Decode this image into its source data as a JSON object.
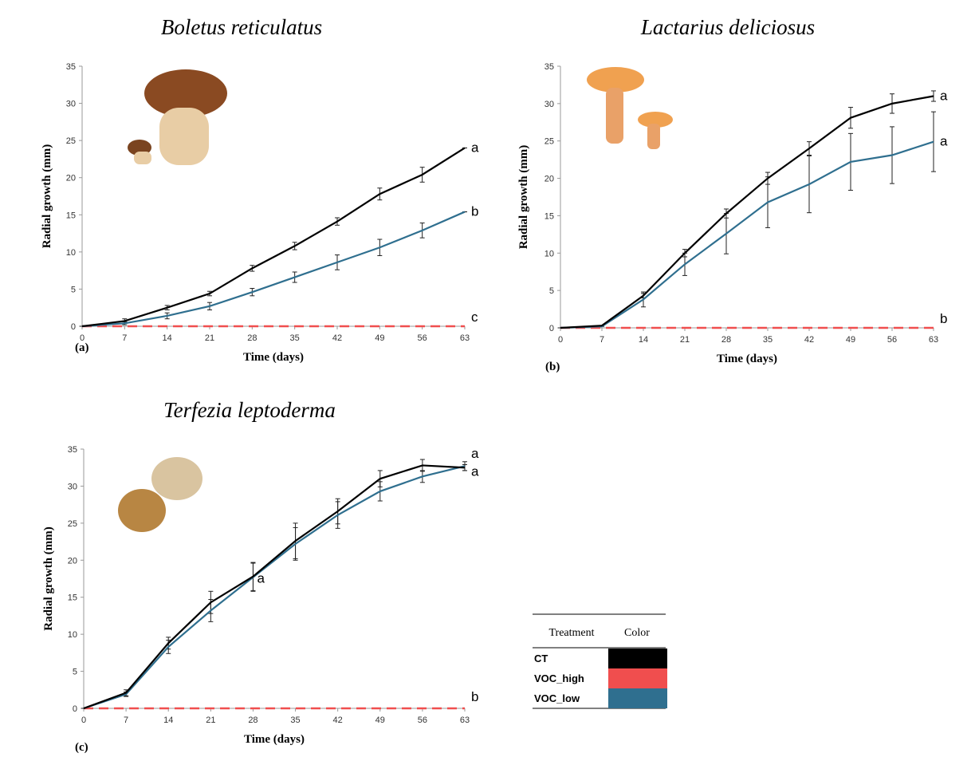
{
  "chart_data": [
    {
      "type": "line",
      "title": "Boletus reticulatus",
      "panel_label": "(a)",
      "xlabel": "Time (days)",
      "ylabel": "Radial growth (mm)",
      "x": [
        0,
        7,
        14,
        21,
        28,
        35,
        42,
        49,
        56,
        63
      ],
      "xlim": [
        0,
        63
      ],
      "xticks": [
        0,
        7,
        14,
        21,
        28,
        35,
        42,
        49,
        56,
        63
      ],
      "ylim": [
        0,
        35
      ],
      "yticks": [
        0,
        5,
        10,
        15,
        20,
        25,
        30,
        35
      ],
      "series": [
        {
          "color": "#000000",
          "line_style": "solid",
          "end_label": "a",
          "values": [
            0,
            0.7,
            2.5,
            4.4,
            7.8,
            10.8,
            14.1,
            17.8,
            20.4,
            24
          ],
          "errors": [
            0,
            0.3,
            0.3,
            0.3,
            0.4,
            0.5,
            0.5,
            0.8,
            1.0,
            0
          ]
        },
        {
          "color": "#f04e4e",
          "line_style": "dashed",
          "end_label": "c",
          "values": [
            0,
            0,
            0,
            0,
            0,
            0,
            0,
            0,
            0,
            0
          ]
        },
        {
          "color": "#2f6f8f",
          "line_style": "solid",
          "end_label": "b",
          "values": [
            0,
            0.4,
            1.4,
            2.7,
            4.6,
            6.6,
            8.6,
            10.6,
            12.9,
            15.4
          ],
          "errors": [
            0,
            0.2,
            0.4,
            0.5,
            0.5,
            0.7,
            1.0,
            1.1,
            1.0,
            0
          ]
        }
      ]
    },
    {
      "type": "line",
      "title": "Lactarius deliciosus",
      "panel_label": "(b)",
      "xlabel": "Time (days)",
      "ylabel": "Radial growth (mm)",
      "x": [
        0,
        7,
        14,
        21,
        28,
        35,
        42,
        49,
        56,
        63
      ],
      "xlim": [
        0,
        63
      ],
      "xticks": [
        0,
        7,
        14,
        21,
        28,
        35,
        42,
        49,
        56,
        63
      ],
      "ylim": [
        0,
        35
      ],
      "yticks": [
        0,
        5,
        10,
        15,
        20,
        25,
        30,
        35
      ],
      "series": [
        {
          "color": "#000000",
          "line_style": "solid",
          "end_label": "a",
          "values": [
            0,
            0.3,
            4.3,
            10,
            15.3,
            20,
            24,
            28.1,
            30,
            31
          ],
          "errors": [
            0,
            0,
            0.3,
            0.5,
            0.6,
            0.8,
            0.9,
            1.4,
            1.3,
            0.7
          ]
        },
        {
          "color": "#f04e4e",
          "line_style": "dashed",
          "end_label": "b",
          "values": [
            0,
            0,
            0,
            0,
            0,
            0,
            0,
            0,
            0,
            0
          ]
        },
        {
          "color": "#2f6f8f",
          "line_style": "solid",
          "end_label": "a",
          "values": [
            0,
            0.2,
            3.8,
            8.5,
            12.6,
            16.8,
            19.2,
            22.2,
            23.1,
            24.9
          ],
          "errors": [
            0,
            0,
            1,
            1.5,
            2.7,
            3.4,
            3.8,
            3.8,
            3.8,
            4.0
          ]
        }
      ]
    },
    {
      "type": "line",
      "title": "Terfezia leptoderma",
      "panel_label": "(c)",
      "xlabel": "Time (days)",
      "ylabel": "Radial growth (mm)",
      "x": [
        0,
        7,
        14,
        21,
        28,
        35,
        42,
        49,
        56,
        63
      ],
      "xlim": [
        0,
        63
      ],
      "xticks": [
        0,
        7,
        14,
        21,
        28,
        35,
        42,
        49,
        56,
        63
      ],
      "ylim": [
        0,
        35
      ],
      "yticks": [
        0,
        5,
        10,
        15,
        20,
        25,
        30,
        35
      ],
      "annotations": [
        {
          "text": "a",
          "x": 28,
          "y": 17.5
        }
      ],
      "series": [
        {
          "color": "#000000",
          "line_style": "solid",
          "end_label": "a",
          "values": [
            0,
            2.1,
            8.8,
            14.3,
            17.8,
            22.6,
            26.6,
            31,
            32.8,
            32.5
          ],
          "errors": [
            0,
            0.4,
            0.8,
            1.5,
            1.9,
            2.4,
            1.7,
            1.1,
            0.8,
            0.4
          ]
        },
        {
          "color": "#f04e4e",
          "line_style": "dashed",
          "end_label": "b",
          "values": [
            0,
            0,
            0,
            0,
            0,
            0,
            0,
            0,
            0,
            0
          ]
        },
        {
          "color": "#2f6f8f",
          "line_style": "solid",
          "end_label": "a",
          "values": [
            0,
            1.9,
            8.3,
            13.2,
            17.7,
            22.2,
            26.1,
            29.3,
            31.3,
            32.7
          ],
          "errors": [
            0,
            0.3,
            0.9,
            1.5,
            1.9,
            2.2,
            1.8,
            1.3,
            0.8,
            0.6
          ]
        }
      ]
    }
  ],
  "legend": {
    "header": [
      "Treatment",
      "Color"
    ],
    "entries": [
      {
        "name": "CT",
        "color": "#000000"
      },
      {
        "name": "VOC_high",
        "color": "#f04e4e"
      },
      {
        "name": "VOC_low",
        "color": "#2f6f8f"
      }
    ]
  }
}
